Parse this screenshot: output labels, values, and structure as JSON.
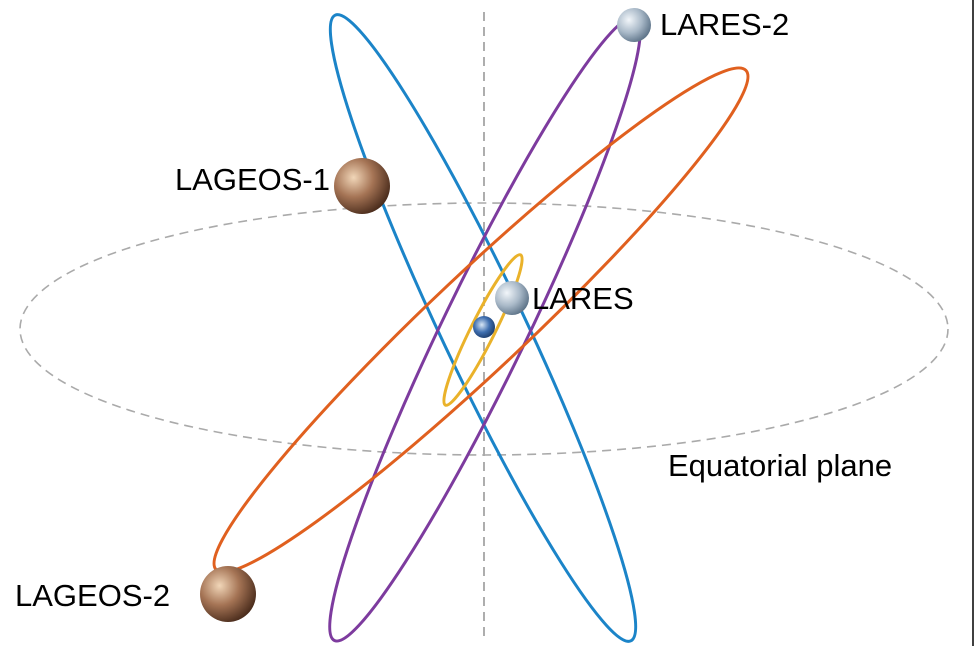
{
  "labels": {
    "lares2": "LARES-2",
    "lageos1": "LAGEOS-1",
    "lares": "LARES",
    "lageos2": "LAGEOS-2",
    "equatorial_plane": "Equatorial plane"
  }
}
